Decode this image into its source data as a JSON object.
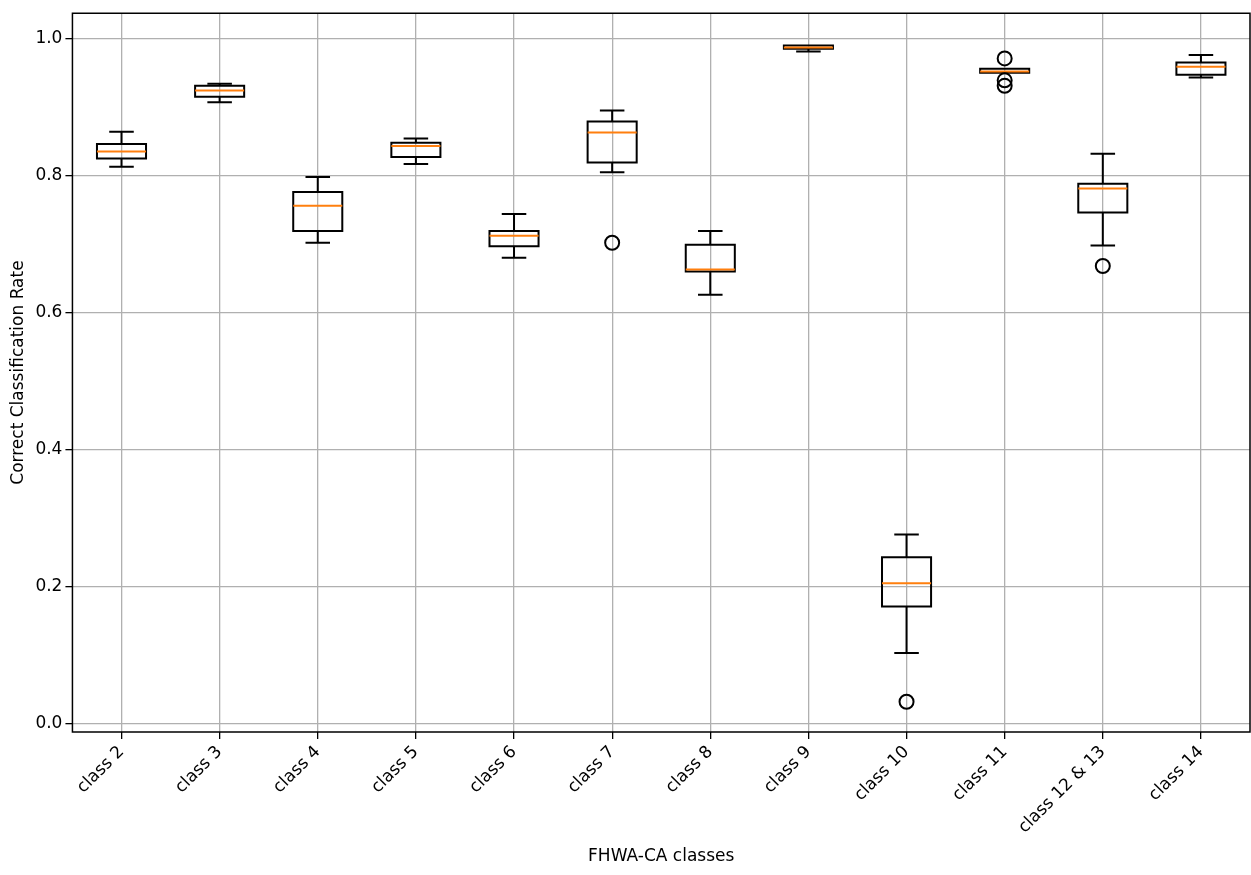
{
  "chart_data": {
    "type": "box",
    "xlabel": "FHWA-CA classes",
    "ylabel": "Correct Classification Rate",
    "categories": [
      "class 2",
      "class 3",
      "class 4",
      "class 5",
      "class 6",
      "class 7",
      "class 8",
      "class 9",
      "class 10",
      "class 11",
      "class 12 & 13",
      "class 14"
    ],
    "color": "#000000",
    "boxes": [
      {
        "low": 0.813,
        "q1": 0.825,
        "median": 0.835,
        "q3": 0.846,
        "high": 0.864
      },
      {
        "low": 0.907,
        "q1": 0.915,
        "median": 0.924,
        "q3": 0.931,
        "high": 0.934
      },
      {
        "low": 0.702,
        "q1": 0.719,
        "median": 0.756,
        "q3": 0.776,
        "high": 0.798
      },
      {
        "low": 0.817,
        "q1": 0.827,
        "median": 0.843,
        "q3": 0.848,
        "high": 0.854
      },
      {
        "low": 0.68,
        "q1": 0.697,
        "median": 0.712,
        "q3": 0.719,
        "high": 0.744
      },
      {
        "low": 0.805,
        "q1": 0.819,
        "median": 0.863,
        "q3": 0.879,
        "high": 0.895,
        "outliers": [
          0.702
        ]
      },
      {
        "low": 0.626,
        "q1": 0.66,
        "median": 0.663,
        "q3": 0.699,
        "high": 0.719
      },
      {
        "low": 0.981,
        "q1": 0.985,
        "median": 0.987,
        "q3": 0.99,
        "high": 0.99
      },
      {
        "low": 0.103,
        "q1": 0.171,
        "median": 0.205,
        "q3": 0.243,
        "high": 0.276,
        "outliers": [
          0.032
        ]
      },
      {
        "low": 0.95,
        "q1": 0.95,
        "median": 0.952,
        "q3": 0.956,
        "high": 0.956,
        "outliers": [
          0.971,
          0.939,
          0.931
        ]
      },
      {
        "low": 0.698,
        "q1": 0.746,
        "median": 0.781,
        "q3": 0.788,
        "high": 0.832,
        "outliers": [
          0.668
        ]
      },
      {
        "low": 0.943,
        "q1": 0.947,
        "median": 0.959,
        "q3": 0.965,
        "high": 0.976
      }
    ],
    "ylim": [
      -0.012,
      1.037
    ],
    "yticks": [
      {
        "value": 0,
        "label": "0.0"
      },
      0.2,
      0.4,
      0.6,
      0.8,
      {
        "value": 1,
        "label": "1.0"
      }
    ],
    "grid": true,
    "legend": false
  }
}
